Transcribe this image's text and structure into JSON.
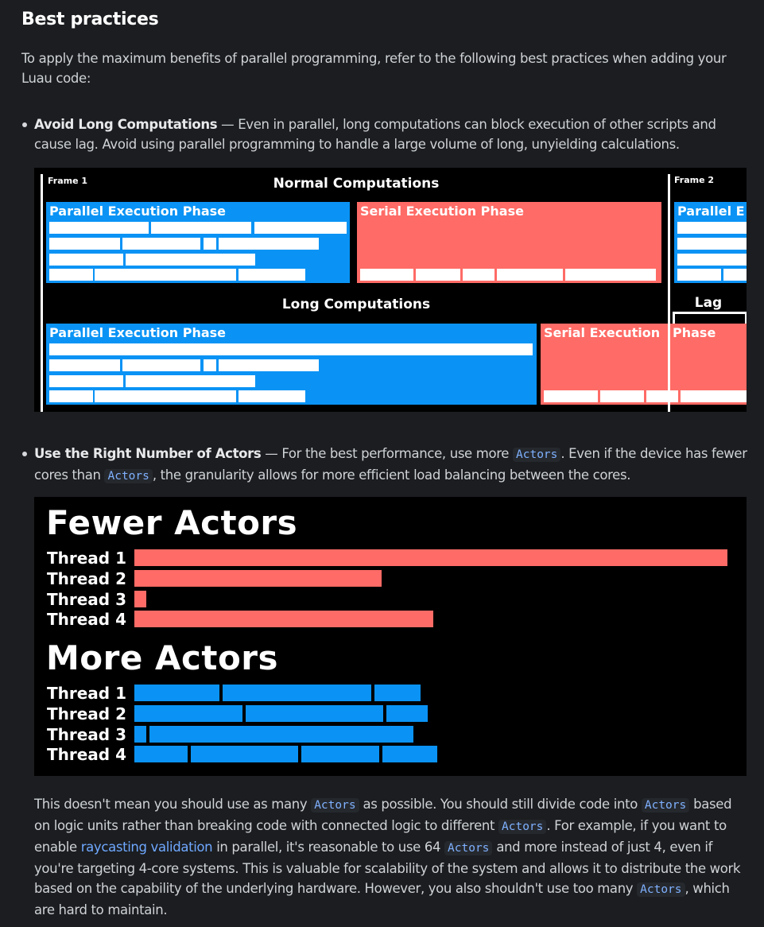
{
  "heading": "Best practices",
  "intro": "To apply the maximum benefits of parallel programming, refer to the following best practices when adding your Luau code:",
  "bullets": [
    {
      "title": "Avoid Long Computations",
      "dash": " — ",
      "text": "Even in parallel, long computations can block execution of other scripts and cause lag. Avoid using parallel programming to handle a large volume of long, unyielding calculations."
    },
    {
      "title": "Use the Right Number of Actors",
      "dash": " — ",
      "text_a": "For the best performance, use more ",
      "code_a": "Actors",
      "text_b": ". Even if the device has fewer cores than ",
      "code_b": "Actors",
      "text_c": ", the granularity allows for more efficient load balancing between the cores."
    }
  ],
  "figure1": {
    "frame1": "Frame 1",
    "frame2": "Frame 2",
    "normal_title": "Normal Computations",
    "long_title": "Long Computations",
    "lag": "Lag",
    "parallel_phase": "Parallel Execution Phase",
    "parallel_phase_cut": "Parallel E",
    "serial_phase": "Serial Execution Phase",
    "serial_phase_a": "Serial Execution",
    "serial_phase_b": "Phase",
    "colors": {
      "parallel": "#0a93f5",
      "serial": "#ff6b66"
    }
  },
  "figure2": {
    "fewer_title": "Fewer Actors",
    "more_title": "More Actors",
    "threads": [
      "Thread 1",
      "Thread 2",
      "Thread 3",
      "Thread 4"
    ],
    "colors": {
      "fewer": "#ff6b66",
      "more": "#0a93f5"
    }
  },
  "closing": {
    "t1": "This doesn't mean you should use as many ",
    "c1": "Actors",
    "t2": " as possible. You should still divide code into ",
    "c2": "Actors",
    "t3": " based on logic units rather than breaking code with connected logic to different ",
    "c3": "Actors",
    "t4": ". For example, if you want to enable ",
    "link": "raycasting validation",
    "t5": " in parallel, it's reasonable to use 64 ",
    "c4": "Actors",
    "t6": " and more instead of just 4, even if you're targeting 4-core systems. This is valuable for scalability of the system and allows it to distribute the work based on the capability of the underlying hardware. However, you also shouldn't use too many ",
    "c5": "Actors",
    "t7": ", which are hard to maintain."
  }
}
